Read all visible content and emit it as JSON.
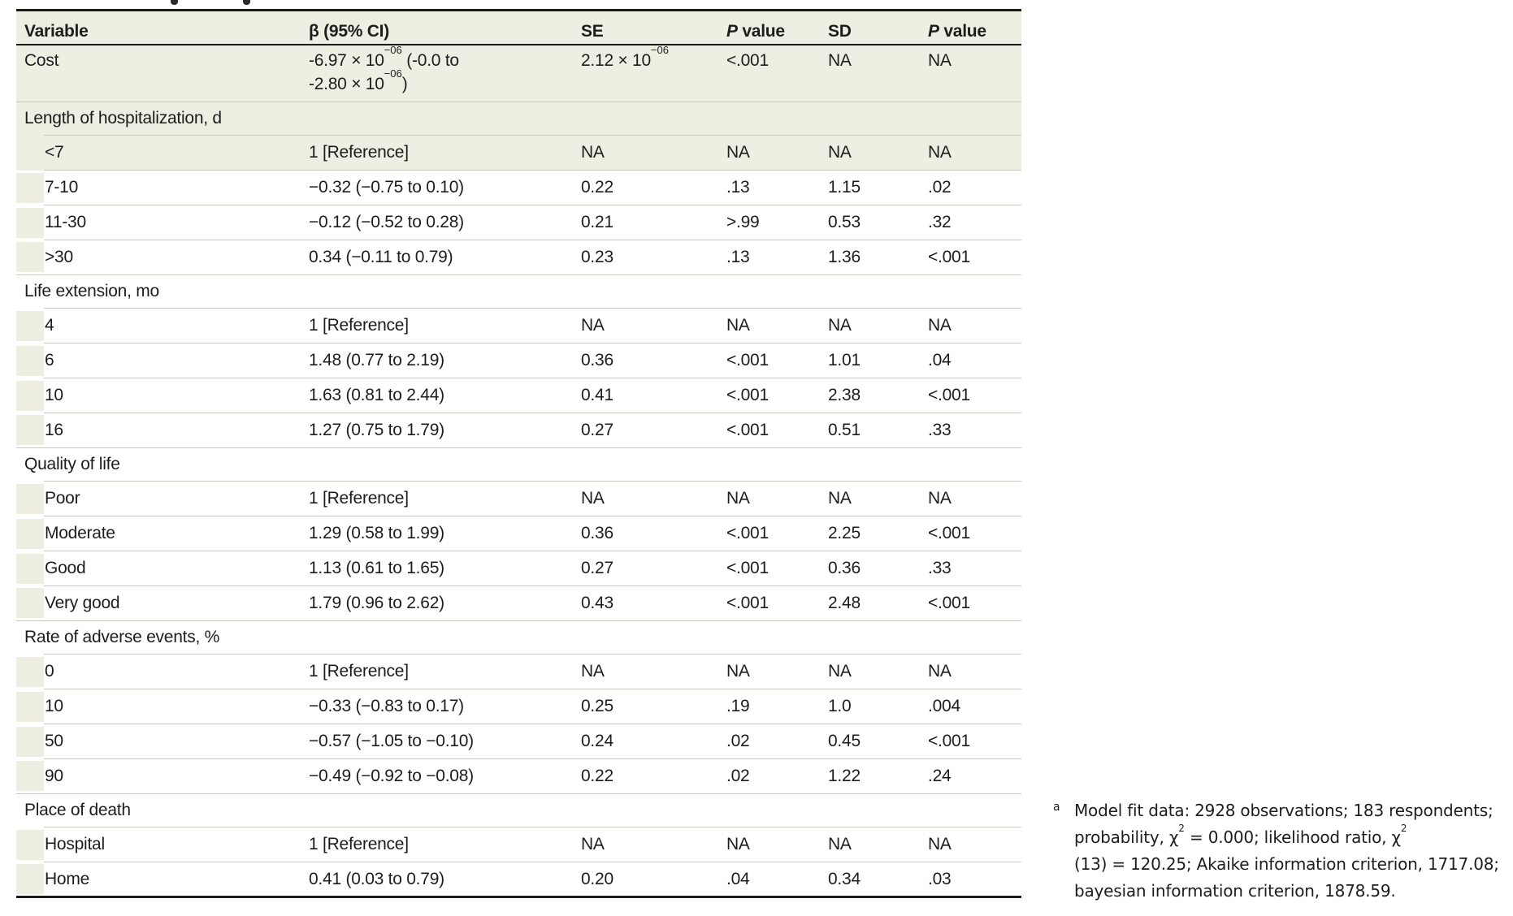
{
  "colors": {
    "row_shade": "#efeee3",
    "hairline": "#c9c8c0",
    "heavy_rule": "#1b1b1b",
    "text": "#1d1d1d",
    "page_background": "#ffffff"
  },
  "table": {
    "header": [
      "Variable",
      "β (95% CI)",
      "SE",
      "*P* value",
      "SD",
      "*P* value"
    ],
    "rows": [
      {
        "type": "data",
        "variant": "cost",
        "indent": false,
        "shaded": true,
        "label": "Cost",
        "cells": [
          "-6.97 × 10^{−06} (-0.0 to\n-2.80 × 10^{−06})",
          "2.12 × 10^{−06}",
          "<.001",
          "NA",
          "NA"
        ]
      },
      {
        "type": "section",
        "shaded": true,
        "label": "Length of hospitalization, d"
      },
      {
        "type": "data",
        "indent": true,
        "shaded": true,
        "label": "<7",
        "cells": [
          "1 [Reference]",
          "NA",
          "NA",
          "NA",
          "NA"
        ]
      },
      {
        "type": "data",
        "indent": true,
        "shaded": false,
        "label": "7-10",
        "cells": [
          "−0.32 (−0.75 to 0.10)",
          "0.22",
          ".13",
          "1.15",
          ".02"
        ]
      },
      {
        "type": "data",
        "indent": true,
        "shaded": false,
        "label": "11-30",
        "cells": [
          "−0.12 (−0.52 to 0.28)",
          "0.21",
          ">.99",
          "0.53",
          ".32"
        ]
      },
      {
        "type": "data",
        "indent": true,
        "shaded": false,
        "label": ">30",
        "cells": [
          "0.34 (−0.11 to 0.79)",
          "0.23",
          ".13",
          "1.36",
          "<.001"
        ]
      },
      {
        "type": "section",
        "shaded": false,
        "label": "Life extension, mo"
      },
      {
        "type": "data",
        "indent": true,
        "shaded": false,
        "label": "4",
        "cells": [
          "1 [Reference]",
          "NA",
          "NA",
          "NA",
          "NA"
        ]
      },
      {
        "type": "data",
        "indent": true,
        "shaded": false,
        "label": "6",
        "cells": [
          "1.48 (0.77 to 2.19)",
          "0.36",
          "<.001",
          "1.01",
          ".04"
        ]
      },
      {
        "type": "data",
        "indent": true,
        "shaded": false,
        "label": "10",
        "cells": [
          "1.63 (0.81 to 2.44)",
          "0.41",
          "<.001",
          "2.38",
          "<.001"
        ]
      },
      {
        "type": "data",
        "indent": true,
        "shaded": false,
        "label": "16",
        "cells": [
          "1.27 (0.75 to 1.79)",
          "0.27",
          "<.001",
          "0.51",
          ".33"
        ]
      },
      {
        "type": "section",
        "shaded": false,
        "label": "Quality of life"
      },
      {
        "type": "data",
        "indent": true,
        "shaded": false,
        "label": "Poor",
        "cells": [
          "1 [Reference]",
          "NA",
          "NA",
          "NA",
          "NA"
        ]
      },
      {
        "type": "data",
        "indent": true,
        "shaded": false,
        "label": "Moderate",
        "cells": [
          "1.29 (0.58 to 1.99)",
          "0.36",
          "<.001",
          "2.25",
          "<.001"
        ]
      },
      {
        "type": "data",
        "indent": true,
        "shaded": false,
        "label": "Good",
        "cells": [
          "1.13 (0.61 to 1.65)",
          "0.27",
          "<.001",
          "0.36",
          ".33"
        ]
      },
      {
        "type": "data",
        "indent": true,
        "shaded": false,
        "label": "Very good",
        "cells": [
          "1.79 (0.96 to 2.62)",
          "0.43",
          "<.001",
          "2.48",
          "<.001"
        ]
      },
      {
        "type": "section",
        "shaded": false,
        "label": "Rate of adverse events, %"
      },
      {
        "type": "data",
        "indent": true,
        "shaded": false,
        "label": "0",
        "cells": [
          "1 [Reference]",
          "NA",
          "NA",
          "NA",
          "NA"
        ]
      },
      {
        "type": "data",
        "indent": true,
        "shaded": false,
        "label": "10",
        "cells": [
          "−0.33 (−0.83 to 0.17)",
          "0.25",
          ".19",
          "1.0",
          ".004"
        ]
      },
      {
        "type": "data",
        "indent": true,
        "shaded": false,
        "label": "50",
        "cells": [
          "−0.57 (−1.05 to −0.10)",
          "0.24",
          ".02",
          "0.45",
          "<.001"
        ]
      },
      {
        "type": "data",
        "indent": true,
        "shaded": false,
        "label": "90",
        "cells": [
          "−0.49 (−0.92 to −0.08)",
          "0.22",
          ".02",
          "1.22",
          ".24"
        ]
      },
      {
        "type": "section",
        "shaded": false,
        "label": "Place of death"
      },
      {
        "type": "data",
        "indent": true,
        "shaded": false,
        "label": "Hospital",
        "cells": [
          "1 [Reference]",
          "NA",
          "NA",
          "NA",
          "NA"
        ]
      },
      {
        "type": "data",
        "indent": true,
        "shaded": false,
        "label": "Home",
        "cells": [
          "0.41 (0.03 to 0.79)",
          "0.20",
          ".04",
          "0.34",
          ".03"
        ]
      }
    ]
  },
  "footnote": {
    "marker": "a",
    "lines": [
      "Model fit data: 2928 observations; 183 respondents;",
      "probability, χ^{2} = 0.000; likelihood ratio, χ^{2}",
      "(13) = 120.25; Akaike information criterion, 1717.08;",
      "bayesian information criterion, 1878.59."
    ]
  }
}
